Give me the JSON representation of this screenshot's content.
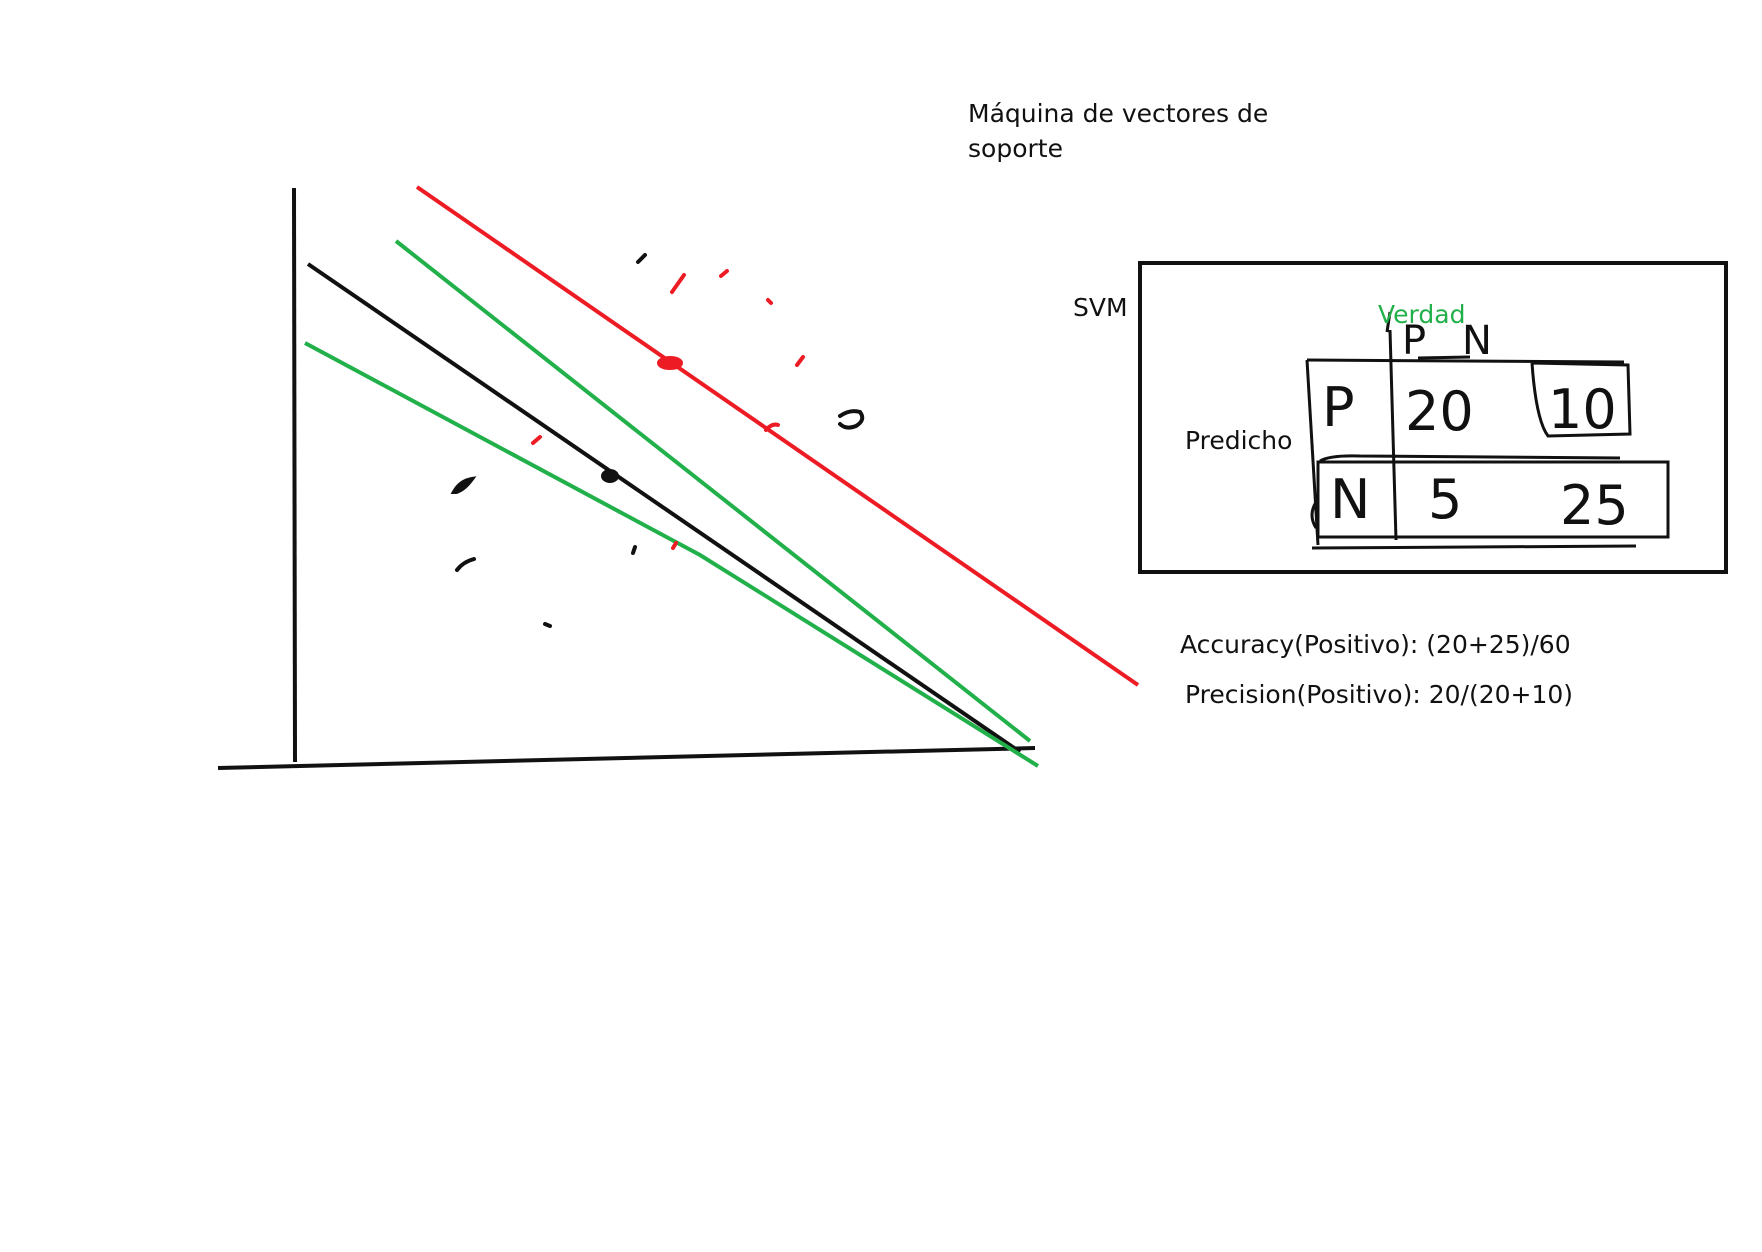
{
  "title": "Máquina de vectores de soporte",
  "svm_label": "SVM",
  "matrix": {
    "truth_label": "Verdad",
    "predicted_label": "Predicho",
    "col_headers": [
      "P",
      "N"
    ],
    "row_headers": [
      "P",
      "N"
    ],
    "cells": [
      [
        "20",
        "10"
      ],
      [
        "5",
        "25"
      ]
    ]
  },
  "metrics": {
    "accuracy": "Accuracy(Positivo): (20+25)/60",
    "precision": "Precision(Positivo): 20/(20+10)"
  },
  "colors": {
    "ink": "#111111",
    "red": "#ed1c24",
    "green": "#22b04b"
  }
}
